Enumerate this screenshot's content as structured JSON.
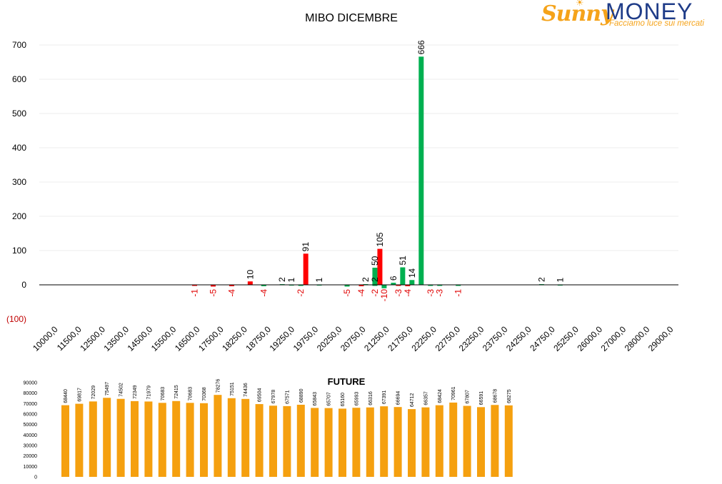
{
  "logo": {
    "sunny": "Sunny",
    "money": "MONEY",
    "tagline": "Facciamo luce sui mercati",
    "color_orange": "#f5a31a",
    "color_blue": "#1f3c88"
  },
  "chart_data": [
    {
      "type": "bar",
      "title": "MIBO DICEMBRE",
      "ylim": [
        -100,
        700
      ],
      "yticks": [
        700,
        600,
        500,
        400,
        300,
        200,
        100,
        0,
        -100
      ],
      "yticklabels": [
        "700",
        "600",
        "500",
        "400",
        "300",
        "200",
        "100",
        "0",
        "(100)"
      ],
      "grid": true,
      "colors": {
        "positive": "#00b050",
        "negative": "#ff0000"
      },
      "xticklabels": [
        "10000,0",
        "11500,0",
        "12500,0",
        "13500,0",
        "14500,0",
        "15500,0",
        "16500,0",
        "17500,0",
        "18250,0",
        "18750,0",
        "19250,0",
        "19750,0",
        "20250,0",
        "20750,0",
        "21250,0",
        "21750,0",
        "22250,0",
        "22750,0",
        "23250,0",
        "23750,0",
        "24250,0",
        "24750,0",
        "25250,0",
        "26000,0",
        "27000,0",
        "28000,0",
        "29000,0"
      ],
      "slot_count": 69,
      "series": [
        {
          "color": "#ff0000",
          "points": [
            {
              "i": 16,
              "v": -1
            },
            {
              "i": 18,
              "v": -5
            },
            {
              "i": 20,
              "v": -4
            },
            {
              "i": 22,
              "v": 10
            },
            {
              "i": 28,
              "v": 91
            },
            {
              "i": 34,
              "v": -4
            },
            {
              "i": 36,
              "v": 105
            },
            {
              "i": 38,
              "v": -3
            },
            {
              "i": 39,
              "v": -4
            }
          ]
        },
        {
          "color": "#00b050",
          "points": [
            {
              "i": 24,
              "v": -4
            },
            {
              "i": 26,
              "v": 2
            },
            {
              "i": 27,
              "v": 1
            },
            {
              "i": 28,
              "v": -2
            },
            {
              "i": 30,
              "v": 1
            },
            {
              "i": 33,
              "v": -5
            },
            {
              "i": 35,
              "v": 2
            },
            {
              "i": 36,
              "v": -2
            },
            {
              "i": 36,
              "v": 2
            },
            {
              "i": 36,
              "v": 50
            },
            {
              "i": 37,
              "v": -10
            },
            {
              "i": 38,
              "v": 6
            },
            {
              "i": 39,
              "v": 51
            },
            {
              "i": 40,
              "v": 14
            },
            {
              "i": 41,
              "v": 666
            },
            {
              "i": 42,
              "v": -3
            },
            {
              "i": 43,
              "v": -3
            },
            {
              "i": 45,
              "v": -1
            },
            {
              "i": 54,
              "v": 2
            },
            {
              "i": 56,
              "v": 1
            }
          ]
        }
      ]
    },
    {
      "type": "bar",
      "title": "FUTURE",
      "ylim": [
        0,
        90000
      ],
      "yticks": [
        0,
        10000,
        20000,
        30000,
        40000,
        50000,
        60000,
        70000,
        80000,
        90000
      ],
      "bar_color": "#f5a00f",
      "values": [
        68440,
        69817,
        72029,
        75497,
        74502,
        72349,
        71979,
        70683,
        72415,
        70683,
        70368,
        78276,
        75151,
        74436,
        69504,
        67978,
        67571,
        68890,
        65843,
        65707,
        65160,
        65993,
        66316,
        67391,
        66694,
        64712,
        66357,
        68424,
        70961,
        67807,
        66591,
        68678,
        68275
      ]
    }
  ]
}
